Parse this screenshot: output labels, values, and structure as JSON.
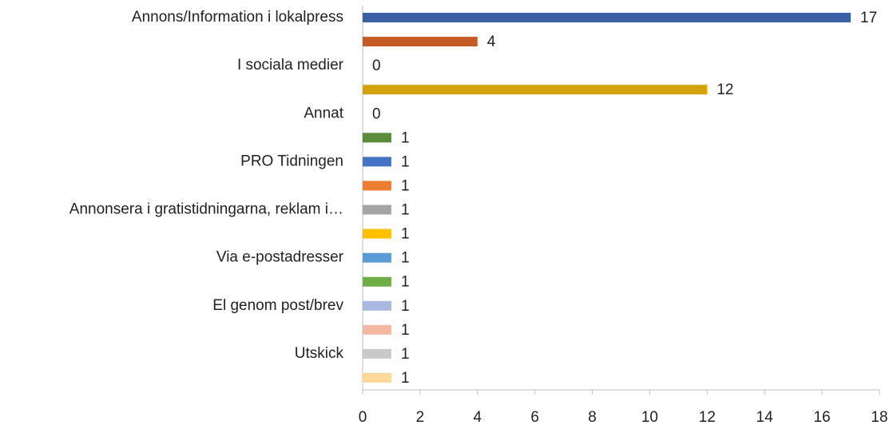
{
  "chart_data": {
    "type": "bar",
    "orientation": "horizontal",
    "categories": [
      "Annons/Information i lokalpress",
      null,
      "I sociala medier",
      null,
      "Annat",
      null,
      "PRO Tidningen",
      null,
      "Annonsera i gratistidningarna, reklam i…",
      null,
      "Via e-postadresser",
      null,
      "El genom post/brev",
      null,
      "Utskick",
      null
    ],
    "values": [
      17,
      4,
      0,
      12,
      0,
      1,
      1,
      1,
      1,
      1,
      1,
      1,
      1,
      1,
      1,
      1
    ],
    "colors": [
      "#3a5fa5",
      "#c55a24",
      "#8c8c8c",
      "#d4a20a",
      "#2e4d85",
      "#5b8c3a",
      "#4472c4",
      "#ed7d31",
      "#a5a5a5",
      "#ffc000",
      "#5b9bd5",
      "#70ad47",
      "#a9b8e0",
      "#f4b7a2",
      "#c9c9c9",
      "#ffd898"
    ],
    "xlim": [
      0,
      18
    ],
    "xticks": [
      0,
      2,
      4,
      6,
      8,
      10,
      12,
      14,
      16,
      18
    ],
    "grid": false
  }
}
